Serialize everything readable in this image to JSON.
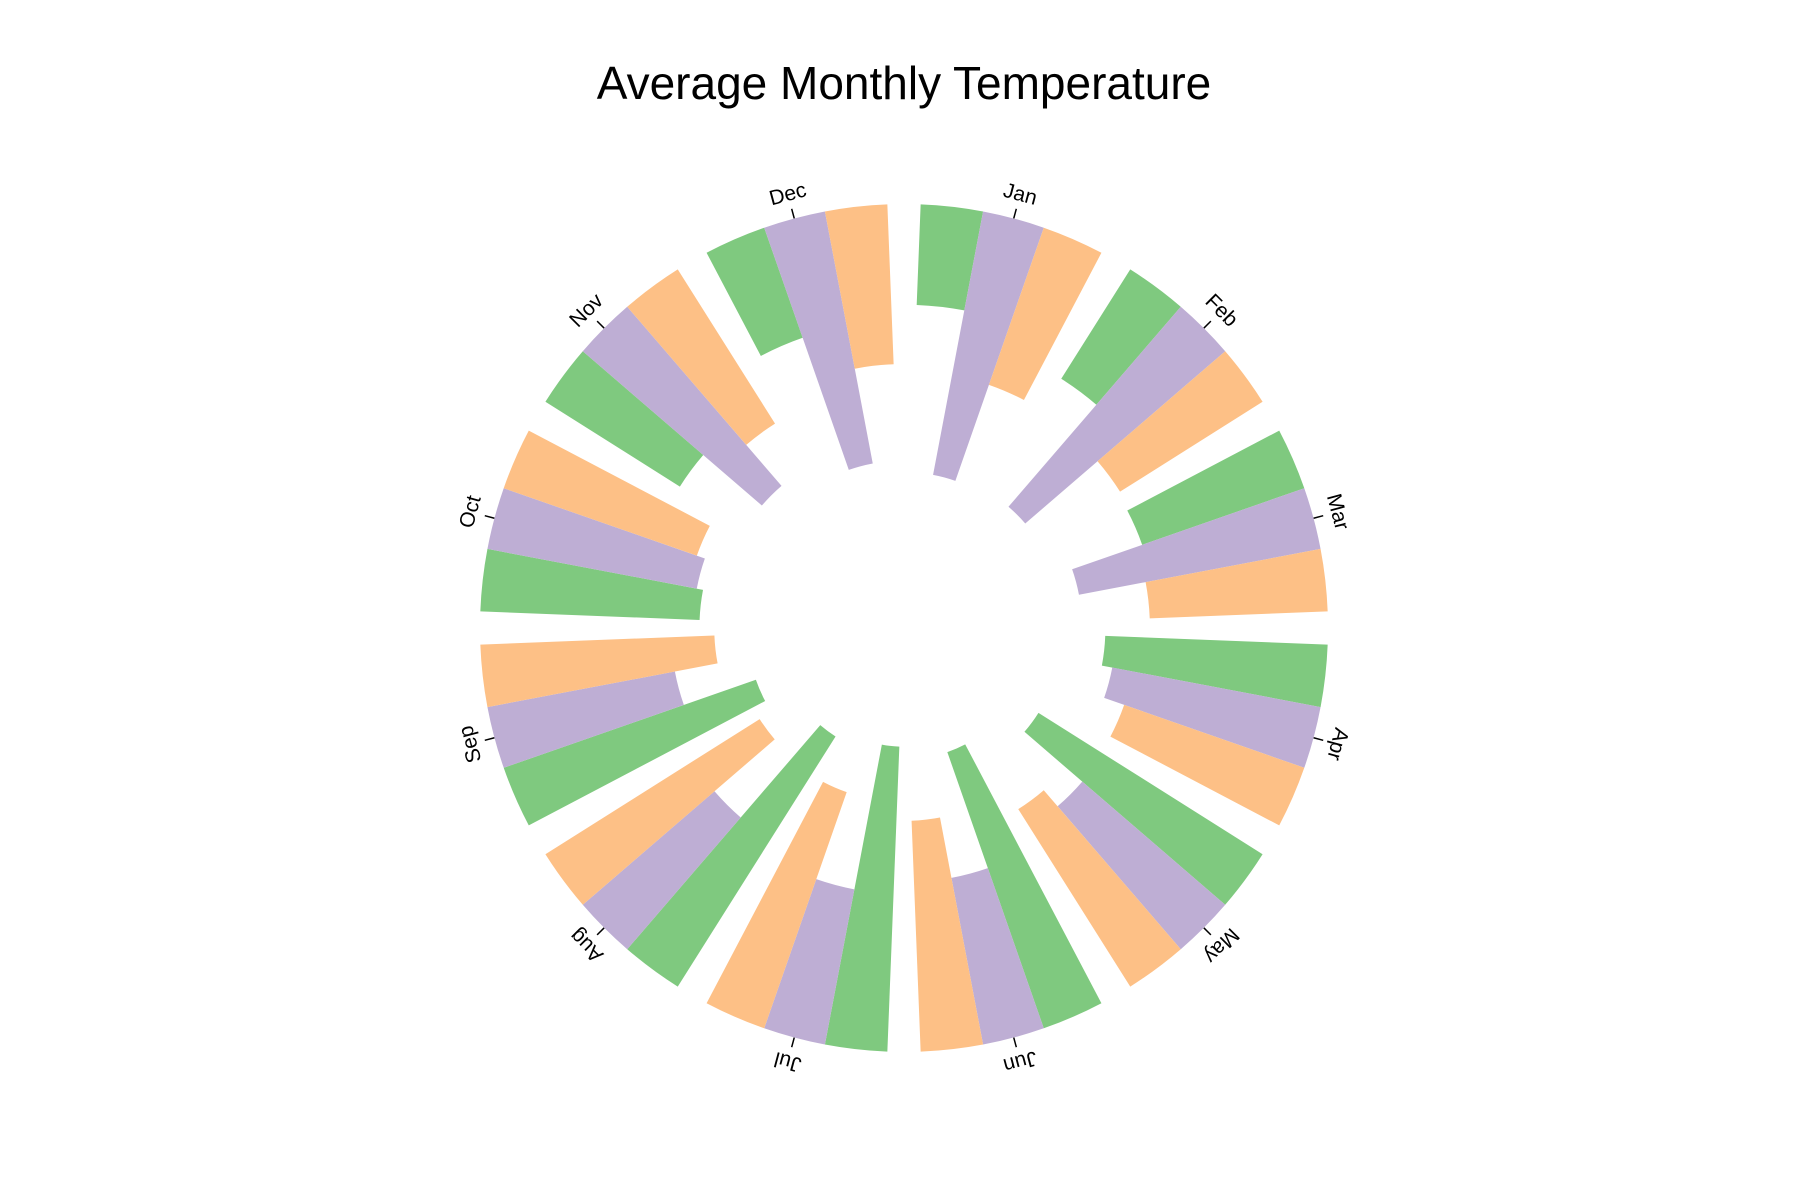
{
  "chart_data": {
    "type": "radial_bar",
    "title": "Average Monthly Temperature",
    "categories": [
      "Jan",
      "Feb",
      "Mar",
      "Apr",
      "May",
      "Jun",
      "Jul",
      "Aug",
      "Sep",
      "Oct",
      "Nov",
      "Dec"
    ],
    "ylim": [
      0,
      40
    ],
    "series": [
      {
        "color": "#7fc97f",
        "values": [
          9.5,
          12.2,
          16.2,
          21.0,
          25.0,
          27.6,
          28.8,
          27.9,
          25.2,
          20.7,
          15.0,
          11.0
        ]
      },
      {
        "color": "#beaed4",
        "values": [
          25.3,
          24.9,
          23.2,
          20.0,
          17.8,
          16.0,
          14.9,
          16.4,
          18.0,
          20.1,
          22.3,
          24.2
        ]
      },
      {
        "color": "#fdc086",
        "values": [
          15.7,
          15.9,
          16.8,
          18.0,
          19.8,
          21.8,
          23.6,
          23.9,
          22.1,
          19.3,
          17.2,
          15.1
        ]
      }
    ]
  }
}
